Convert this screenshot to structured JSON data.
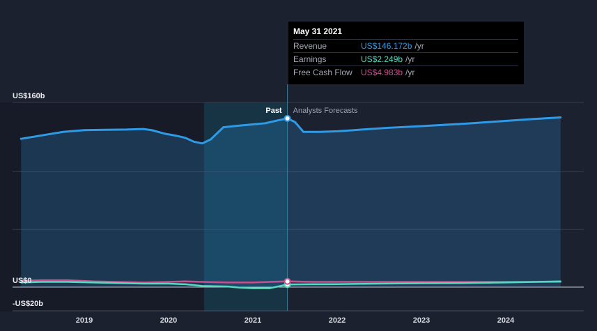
{
  "chart_data": {
    "type": "area",
    "y_axis": {
      "min": -20,
      "max": 160,
      "labels": [
        "US$160b",
        "US$0",
        "-US$20b"
      ],
      "label_values": [
        160,
        0,
        -20
      ]
    },
    "x_axis": {
      "labels": [
        "2019",
        "2020",
        "2021",
        "2022",
        "2023",
        "2024"
      ],
      "label_values": [
        2019.0,
        2020.0,
        2021.0,
        2022.0,
        2023.0,
        2024.0
      ]
    },
    "past_label": "Past",
    "forecast_label": "Analysts Forecasts",
    "marker_x": 2021.41,
    "series": [
      {
        "name": "Revenue",
        "color": "#2f9ae6",
        "points": [
          [
            2018.25,
            128.5
          ],
          [
            2018.5,
            131.5
          ],
          [
            2018.75,
            134.5
          ],
          [
            2019.0,
            136.0
          ],
          [
            2019.25,
            136.3
          ],
          [
            2019.5,
            136.5
          ],
          [
            2019.7,
            137.0
          ],
          [
            2019.8,
            136.0
          ],
          [
            2019.95,
            133.0
          ],
          [
            2020.1,
            131.0
          ],
          [
            2020.2,
            129.3
          ],
          [
            2020.3,
            126.0
          ],
          [
            2020.4,
            124.5
          ],
          [
            2020.5,
            128.0
          ],
          [
            2020.65,
            138.5
          ],
          [
            2020.85,
            140.0
          ],
          [
            2021.0,
            141.0
          ],
          [
            2021.15,
            142.0
          ],
          [
            2021.3,
            144.5
          ],
          [
            2021.41,
            146.172
          ],
          [
            2021.5,
            143.0
          ],
          [
            2021.6,
            134.5
          ],
          [
            2021.8,
            134.5
          ],
          [
            2022.0,
            135.0
          ],
          [
            2022.3,
            136.5
          ],
          [
            2022.6,
            138.0
          ],
          [
            2023.0,
            139.5
          ],
          [
            2023.5,
            141.5
          ],
          [
            2024.0,
            144.0
          ],
          [
            2024.3,
            145.5
          ],
          [
            2024.65,
            147.0
          ]
        ]
      },
      {
        "name": "Earnings",
        "color": "#57d9c0",
        "points": [
          [
            2018.25,
            4.0
          ],
          [
            2018.5,
            4.5
          ],
          [
            2018.8,
            4.5
          ],
          [
            2019.1,
            4.0
          ],
          [
            2019.4,
            3.5
          ],
          [
            2019.7,
            3.0
          ],
          [
            2020.0,
            3.0
          ],
          [
            2020.2,
            2.5
          ],
          [
            2020.4,
            1.0
          ],
          [
            2020.7,
            0.5
          ],
          [
            2020.85,
            -0.5
          ],
          [
            2021.0,
            -1.0
          ],
          [
            2021.2,
            -1.0
          ],
          [
            2021.41,
            2.249
          ],
          [
            2021.7,
            2.5
          ],
          [
            2022.0,
            2.6
          ],
          [
            2022.5,
            3.0
          ],
          [
            2023.0,
            3.3
          ],
          [
            2023.5,
            3.5
          ],
          [
            2024.0,
            4.0
          ],
          [
            2024.65,
            5.0
          ]
        ]
      },
      {
        "name": "Free Cash Flow",
        "color": "#c9508f",
        "points": [
          [
            2018.25,
            5.5
          ],
          [
            2018.5,
            6.0
          ],
          [
            2018.8,
            6.0
          ],
          [
            2019.1,
            5.0
          ],
          [
            2019.4,
            4.5
          ],
          [
            2019.7,
            4.0
          ],
          [
            2020.0,
            4.5
          ],
          [
            2020.2,
            5.0
          ],
          [
            2020.4,
            4.5
          ],
          [
            2020.7,
            4.0
          ],
          [
            2021.0,
            4.0
          ],
          [
            2021.2,
            4.5
          ],
          [
            2021.41,
            4.983
          ],
          [
            2021.7,
            4.5
          ],
          [
            2022.0,
            4.5
          ],
          [
            2022.5,
            4.5
          ],
          [
            2023.0,
            4.5
          ],
          [
            2023.5,
            4.5
          ],
          [
            2024.0,
            4.5
          ],
          [
            2024.65,
            4.5
          ]
        ]
      }
    ]
  },
  "tooltip": {
    "date": "May 31 2021",
    "rows": [
      {
        "name": "Revenue",
        "value": "US$146.172b",
        "unit": "/yr",
        "color": "#2f9ae6"
      },
      {
        "name": "Earnings",
        "value": "US$2.249b",
        "unit": "/yr",
        "color": "#57d9c0"
      },
      {
        "name": "Free Cash Flow",
        "value": "US$4.983b",
        "unit": "/yr",
        "color": "#c9508f"
      }
    ]
  }
}
